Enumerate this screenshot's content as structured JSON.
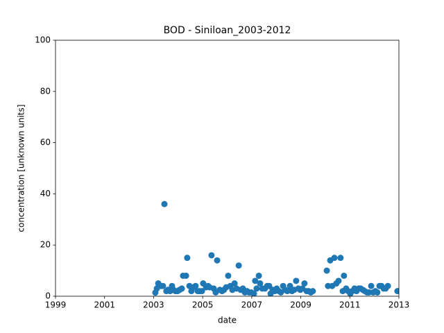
{
  "chart_data": {
    "type": "scatter",
    "title": "BOD - Siniloan_2003-2012",
    "xlabel": "date",
    "ylabel": "concentration [unknown units]",
    "color": "#1f77b4",
    "xlim": [
      1999,
      2013
    ],
    "xticks": [
      1999,
      2001,
      2003,
      2005,
      2007,
      2009,
      2011,
      2013
    ],
    "ylim": [
      0,
      100
    ],
    "yticks": [
      0,
      20,
      40,
      60,
      80,
      100
    ],
    "grid": false,
    "x": [
      2003.07,
      2003.13,
      2003.19,
      2003.3,
      2003.38,
      2003.44,
      2003.52,
      2003.58,
      2003.67,
      2003.75,
      2003.81,
      2003.89,
      2003.98,
      2004.06,
      2004.15,
      2004.2,
      2004.32,
      2004.37,
      2004.46,
      2004.54,
      2004.63,
      2004.71,
      2004.8,
      2004.88,
      2004.97,
      2005.02,
      2005.14,
      2005.22,
      2005.28,
      2005.36,
      2005.45,
      2005.53,
      2005.59,
      2005.7,
      2005.79,
      2005.87,
      2005.96,
      2006.04,
      2006.13,
      2006.21,
      2006.3,
      2006.38,
      2006.47,
      2006.55,
      2006.64,
      2006.72,
      2006.81,
      2006.89,
      2006.98,
      2007.09,
      2007.14,
      2007.2,
      2007.29,
      2007.34,
      2007.43,
      2007.54,
      2007.63,
      2007.71,
      2007.77,
      2007.85,
      2007.94,
      2008.02,
      2008.11,
      2008.19,
      2008.28,
      2008.36,
      2008.45,
      2008.56,
      2008.64,
      2008.73,
      2008.81,
      2008.9,
      2008.98,
      2009.07,
      2009.15,
      2009.24,
      2009.32,
      2009.41,
      2009.49,
      2010.06,
      2010.11,
      2010.2,
      2010.28,
      2010.37,
      2010.45,
      2010.54,
      2010.62,
      2010.71,
      2010.76,
      2010.85,
      2010.93,
      2011.02,
      2011.1,
      2011.19,
      2011.27,
      2011.36,
      2011.44,
      2011.53,
      2011.61,
      2011.7,
      2011.78,
      2011.87,
      2011.95,
      2012.04,
      2012.12,
      2012.21,
      2012.29,
      2012.38,
      2012.46,
      2012.55,
      2012.94
    ],
    "values": [
      1.4,
      3,
      5,
      4,
      4,
      36,
      2,
      2.5,
      2,
      4,
      2.5,
      2,
      2,
      2.5,
      3,
      8,
      8,
      15,
      4,
      2,
      3.5,
      4,
      2,
      2,
      2,
      5,
      3.5,
      4,
      3.5,
      16,
      3,
      1.5,
      14,
      2.5,
      2,
      2.5,
      3.5,
      8,
      4,
      2.5,
      5,
      3,
      12,
      2.5,
      3,
      1.5,
      2,
      1.5,
      1.5,
      1,
      6,
      3,
      8,
      5,
      3,
      3,
      4,
      4,
      1,
      2.5,
      2,
      3,
      2,
      1.5,
      4,
      2.5,
      2,
      4,
      2,
      2.5,
      6,
      3,
      2.5,
      3,
      5,
      2,
      2,
      1.5,
      2,
      10,
      4,
      14,
      4,
      15,
      5,
      6,
      15,
      2,
      8,
      3,
      2,
      1,
      2,
      3,
      2,
      3,
      3,
      2.5,
      2,
      1.5,
      1.5,
      4,
      1.5,
      2,
      1.5,
      4,
      4,
      3,
      3,
      4,
      2
    ]
  }
}
